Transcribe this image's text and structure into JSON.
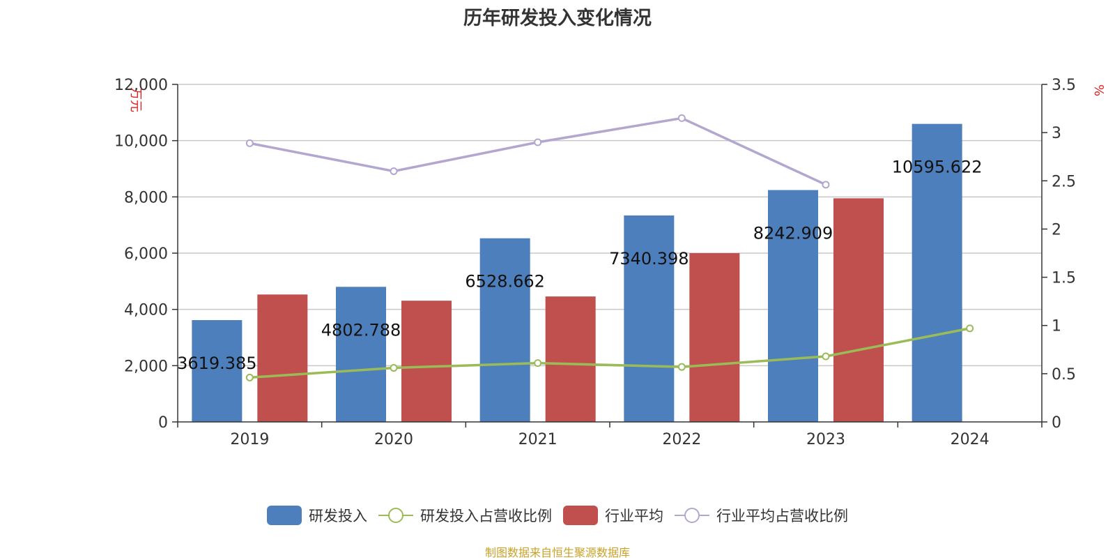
{
  "title": "历年研发投入变化情况",
  "source": "制图数据来自恒生聚源数据库",
  "colors": {
    "rd_bar": "#4e7fbd",
    "avg_bar": "#c0504d",
    "rd_ratio_line": "#9bbb59",
    "avg_ratio_line": "#b3a7d0",
    "axis_unit": "#e02020"
  },
  "chart_data": {
    "type": "bar",
    "categories": [
      "2019",
      "2020",
      "2021",
      "2022",
      "2023",
      "2024"
    ],
    "y_left": {
      "unit": "万元",
      "range": [
        0,
        12000
      ],
      "ticks": [
        0,
        2000,
        4000,
        6000,
        8000,
        10000,
        12000
      ],
      "tick_labels": [
        "0",
        "2,000",
        "4,000",
        "6,000",
        "8,000",
        "10,000",
        "12,000"
      ]
    },
    "y_right": {
      "unit": "%",
      "range": [
        0,
        3.5
      ],
      "ticks": [
        0,
        0.5,
        1,
        1.5,
        2,
        2.5,
        3,
        3.5
      ],
      "tick_labels": [
        "0",
        "0.5",
        "1",
        "1.5",
        "2",
        "2.5",
        "3",
        "3.5"
      ]
    },
    "grid": true,
    "legend_position": "bottom",
    "series": [
      {
        "name": "研发投入",
        "type": "bar",
        "axis": "left",
        "values": [
          3619.385,
          4802.788,
          6528.662,
          7340.398,
          8242.909,
          10595.622
        ],
        "labels": [
          "3619.385",
          "4802.788",
          "6528.662",
          "7340.398",
          "8242.909",
          "10595.622"
        ]
      },
      {
        "name": "研发投入占营收比例",
        "type": "line",
        "axis": "right",
        "values": [
          0.46,
          0.56,
          0.61,
          0.57,
          0.68,
          0.97
        ]
      },
      {
        "name": "行业平均",
        "type": "bar",
        "axis": "left",
        "values": [
          4530,
          4310,
          4460,
          6000,
          7950,
          null
        ]
      },
      {
        "name": "行业平均占营收比例",
        "type": "line",
        "axis": "right",
        "values": [
          2.89,
          2.6,
          2.9,
          3.15,
          2.46,
          null
        ]
      }
    ]
  }
}
